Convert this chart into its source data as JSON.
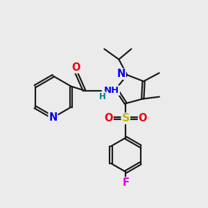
{
  "bg_color": "#ebebeb",
  "bond_color": "#1a1a1a",
  "bond_width": 1.6,
  "atom_colors": {
    "N": "#0000ee",
    "O": "#ee0000",
    "S": "#bbbb00",
    "F": "#dd00dd",
    "C": "#1a1a1a",
    "H": "#008080"
  },
  "font_size": 9.5
}
